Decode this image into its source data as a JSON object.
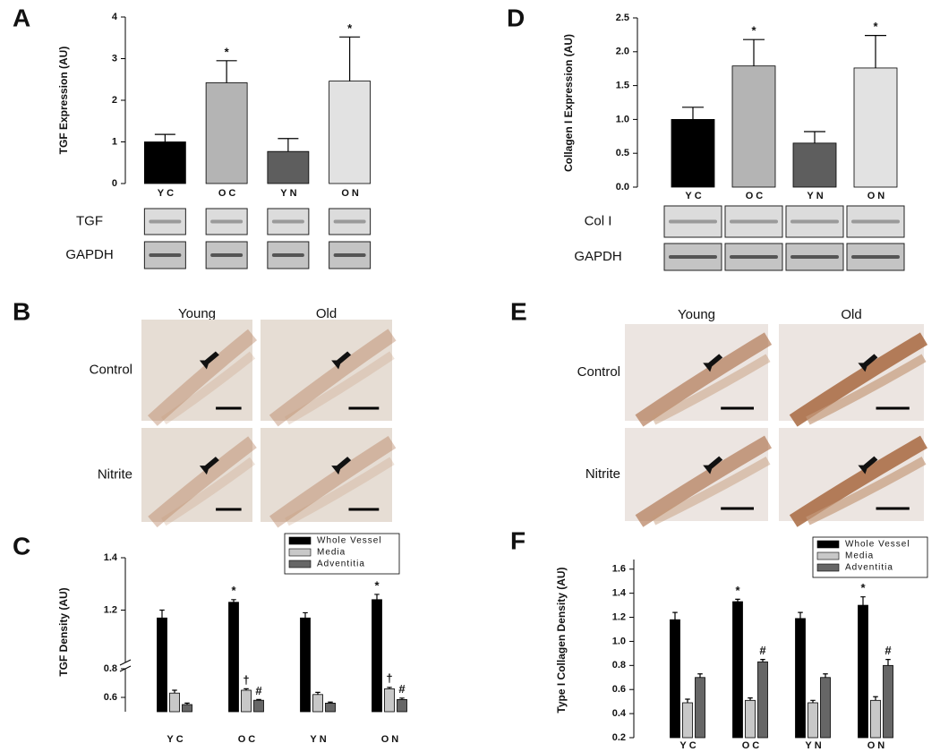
{
  "chart_data": [
    {
      "type": "bar",
      "label": "A",
      "ylabel": "TGF Expression (AU)",
      "categories": [
        "YC",
        "OC",
        "YN",
        "ON"
      ],
      "values": [
        1.0,
        2.42,
        0.77,
        2.46
      ],
      "errors": [
        0.18,
        0.53,
        0.31,
        1.06
      ],
      "colors": [
        "#000000",
        "#b4b4b4",
        "#5e5e5e",
        "#e2e2e2"
      ],
      "markers": [
        null,
        "*",
        null,
        "*"
      ],
      "ylim": [
        0,
        4
      ],
      "yticks": [
        0,
        1,
        2,
        3,
        4
      ],
      "blots": [
        "TGF",
        "GAPDH"
      ]
    },
    {
      "type": "bar",
      "label": "C",
      "ylabel": "TGF Density (AU)",
      "categories": [
        "YC",
        "OC",
        "YN",
        "ON"
      ],
      "series": [
        {
          "name": "Whole Vessel",
          "color": "#000000",
          "values": [
            1.17,
            1.23,
            1.17,
            1.24
          ],
          "errors": [
            0.03,
            0.01,
            0.02,
            0.02
          ],
          "markers": [
            null,
            "*",
            null,
            "*"
          ]
        },
        {
          "name": "Media",
          "color": "#c8c8c8",
          "values": [
            0.63,
            0.65,
            0.62,
            0.66
          ],
          "errors": [
            0.02,
            0.01,
            0.015,
            0.01
          ],
          "markers": [
            null,
            "†",
            null,
            "†"
          ]
        },
        {
          "name": "Adventitia",
          "color": "#666666",
          "values": [
            0.55,
            0.58,
            0.56,
            0.585
          ],
          "errors": [
            0.01,
            0.005,
            0.007,
            0.01
          ],
          "markers": [
            null,
            "#",
            null,
            "#"
          ]
        }
      ],
      "ylim": [
        0.5,
        1.4
      ],
      "ybreak": [
        0.8,
        1.0
      ],
      "yticks": [
        0.6,
        0.8,
        1.2,
        1.4
      ],
      "legend": "upper right"
    },
    {
      "type": "bar",
      "label": "D",
      "ylabel": "Collagen I Expression (AU)",
      "categories": [
        "YC",
        "OC",
        "YN",
        "ON"
      ],
      "values": [
        1.0,
        1.79,
        0.65,
        1.76
      ],
      "errors": [
        0.18,
        0.39,
        0.17,
        0.48
      ],
      "colors": [
        "#000000",
        "#b4b4b4",
        "#5e5e5e",
        "#e2e2e2"
      ],
      "markers": [
        null,
        "*",
        null,
        "*"
      ],
      "ylim": [
        0,
        2.5
      ],
      "yticks": [
        {
          "value": 0,
          "label": "0.0"
        },
        0.5,
        {
          "value": 1,
          "label": "1.0"
        },
        1.5,
        {
          "value": 2,
          "label": "2.0"
        },
        2.5
      ],
      "blots": [
        "Col I",
        "GAPDH"
      ]
    },
    {
      "type": "bar",
      "label": "F",
      "ylabel": "Type I Collagen Density (AU)",
      "categories": [
        "YC",
        "OC",
        "YN",
        "ON"
      ],
      "series": [
        {
          "name": "Whole Vessel",
          "color": "#000000",
          "values": [
            1.18,
            1.33,
            1.19,
            1.3
          ],
          "errors": [
            0.06,
            0.02,
            0.05,
            0.07
          ],
          "markers": [
            null,
            "*",
            null,
            "*"
          ]
        },
        {
          "name": "Media",
          "color": "#c8c8c8",
          "values": [
            0.49,
            0.51,
            0.49,
            0.51
          ],
          "errors": [
            0.03,
            0.02,
            0.02,
            0.03
          ],
          "markers": [
            null,
            null,
            null,
            null
          ]
        },
        {
          "name": "Adventitia",
          "color": "#666666",
          "values": [
            0.7,
            0.83,
            0.7,
            0.8
          ],
          "errors": [
            0.03,
            0.02,
            0.03,
            0.05
          ],
          "markers": [
            null,
            "#",
            null,
            "#"
          ]
        }
      ],
      "ylim": [
        0.2,
        1.68
      ],
      "yticks": [
        0.2,
        0.4,
        0.6,
        0.8,
        {
          "value": 1,
          "label": "1.0"
        },
        1.2,
        1.4,
        1.6
      ],
      "legend": "upper right"
    }
  ],
  "micrographs": [
    {
      "label": "B",
      "columns": [
        "Young",
        "Old"
      ],
      "rows": [
        "Control",
        "Nitrite"
      ]
    },
    {
      "label": "E",
      "columns": [
        "Young",
        "Old"
      ],
      "rows": [
        "Control",
        "Nitrite"
      ]
    }
  ]
}
